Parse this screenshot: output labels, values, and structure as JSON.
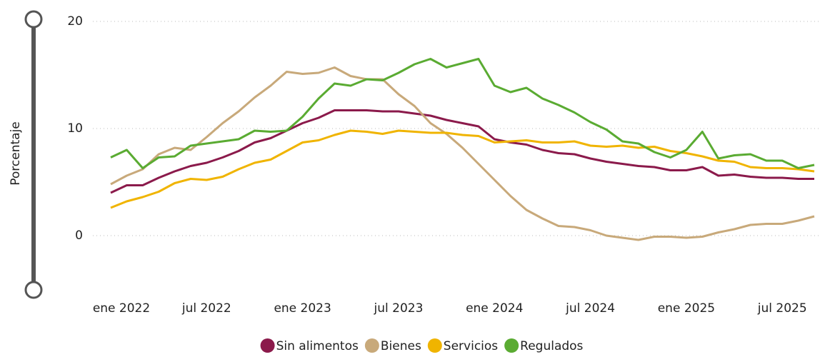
{
  "chart_data": {
    "type": "line",
    "y_label": "Porcentaje",
    "categories": [
      "ene 2022",
      null,
      null,
      null,
      null,
      null,
      "jul 2022",
      null,
      null,
      null,
      null,
      null,
      "ene 2023",
      null,
      null,
      null,
      null,
      null,
      "jul 2023",
      null,
      null,
      null,
      null,
      null,
      "ene 2024",
      null,
      null,
      null,
      null,
      null,
      "jul 2024",
      null,
      null,
      null,
      null,
      null,
      "ene 2025",
      null,
      null,
      null,
      null,
      null,
      "jul 2025",
      null,
      null
    ],
    "series": [
      {
        "name": "Sin alimentos",
        "color": "#8b1a4b",
        "values": [
          4.0,
          4.7,
          4.7,
          5.4,
          6.0,
          6.5,
          6.8,
          7.3,
          7.9,
          8.7,
          9.1,
          9.8,
          10.5,
          11.0,
          11.7,
          11.7,
          11.7,
          11.6,
          11.6,
          11.4,
          11.2,
          10.8,
          10.5,
          10.2,
          9.0,
          8.7,
          8.5,
          8.0,
          7.7,
          7.6,
          7.2,
          6.9,
          6.7,
          6.5,
          6.4,
          6.1,
          6.1,
          6.4,
          5.6,
          5.7,
          5.5,
          5.4,
          5.4,
          5.3,
          5.3
        ]
      },
      {
        "name": "Bienes",
        "color": "#c8a97a",
        "values": [
          4.8,
          5.6,
          6.2,
          7.6,
          8.2,
          8.0,
          9.2,
          10.5,
          11.6,
          12.9,
          14.0,
          15.3,
          15.1,
          15.2,
          15.7,
          14.9,
          14.6,
          14.6,
          13.2,
          12.1,
          10.5,
          9.5,
          8.2,
          6.7,
          5.2,
          3.7,
          2.4,
          1.6,
          0.9,
          0.8,
          0.5,
          0.0,
          -0.2,
          -0.4,
          -0.1,
          -0.1,
          -0.2,
          -0.1,
          0.3,
          0.6,
          1.0,
          1.1,
          1.1,
          1.4,
          1.8
        ]
      },
      {
        "name": "Servicios",
        "color": "#f0b400",
        "values": [
          2.6,
          3.2,
          3.6,
          4.1,
          4.9,
          5.3,
          5.2,
          5.5,
          6.2,
          6.8,
          7.1,
          7.9,
          8.7,
          8.9,
          9.4,
          9.8,
          9.7,
          9.5,
          9.8,
          9.7,
          9.6,
          9.6,
          9.4,
          9.3,
          8.7,
          8.8,
          8.9,
          8.7,
          8.7,
          8.8,
          8.4,
          8.3,
          8.4,
          8.2,
          8.3,
          7.9,
          7.7,
          7.4,
          7.0,
          6.9,
          6.4,
          6.3,
          6.3,
          6.2,
          6.0
        ]
      },
      {
        "name": "Regulados",
        "color": "#5aab32",
        "values": [
          7.3,
          8.0,
          6.3,
          7.3,
          7.4,
          8.4,
          8.6,
          8.8,
          9.0,
          9.8,
          9.7,
          9.8,
          11.1,
          12.8,
          14.2,
          14.0,
          14.6,
          14.5,
          15.2,
          16.0,
          16.5,
          15.7,
          16.1,
          16.5,
          14.0,
          13.4,
          13.8,
          12.8,
          12.2,
          11.5,
          10.6,
          9.9,
          8.8,
          8.6,
          7.8,
          7.3,
          8.0,
          9.7,
          7.2,
          7.5,
          7.6,
          7.0,
          7.0,
          6.3,
          6.6
        ]
      }
    ],
    "ylim": [
      -5,
      20
    ],
    "yticks": [
      0,
      10,
      20
    ],
    "grid": true,
    "legend": "bottom"
  }
}
